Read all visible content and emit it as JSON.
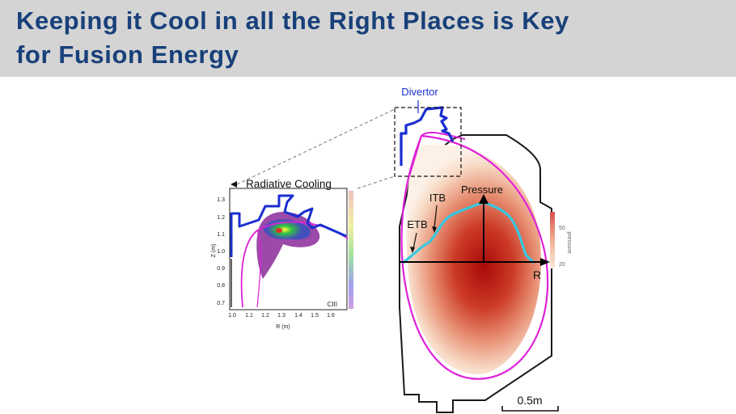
{
  "slide": {
    "title_line1": "Keeping it Cool in all the Right Places is Key",
    "title_line2": "for Fusion Energy"
  },
  "colors": {
    "title_text": "#18407a",
    "title_bar": "#d4d4d4",
    "separatrix": "#e020d8",
    "divertor_plates": "#1a2fd0",
    "pressure_profile": "#37c8e0",
    "core_red": "#b01010"
  },
  "inset": {
    "title": "Radiative Cooling",
    "species_label": "CIII",
    "x_axis_label": "R (m)",
    "y_axis_label": "Z (m)",
    "x_ticks": [
      "1.0",
      "1.1",
      "1.2",
      "1.3",
      "1.4",
      "1.5",
      "1.6"
    ],
    "y_ticks": [
      "1.3",
      "1.2",
      "1.1",
      "1.0",
      "0.9",
      "0.8",
      "0.7"
    ]
  },
  "main": {
    "divertor_label": "Divertor",
    "pressure_label": "Pressure",
    "itb_label": "ITB",
    "etb_label": "ETB",
    "r_axis_label": "R",
    "scale_bar_label": "0.5m",
    "colorbar_label": "pressure",
    "colorbar_ticks": [
      "50",
      "20"
    ]
  }
}
